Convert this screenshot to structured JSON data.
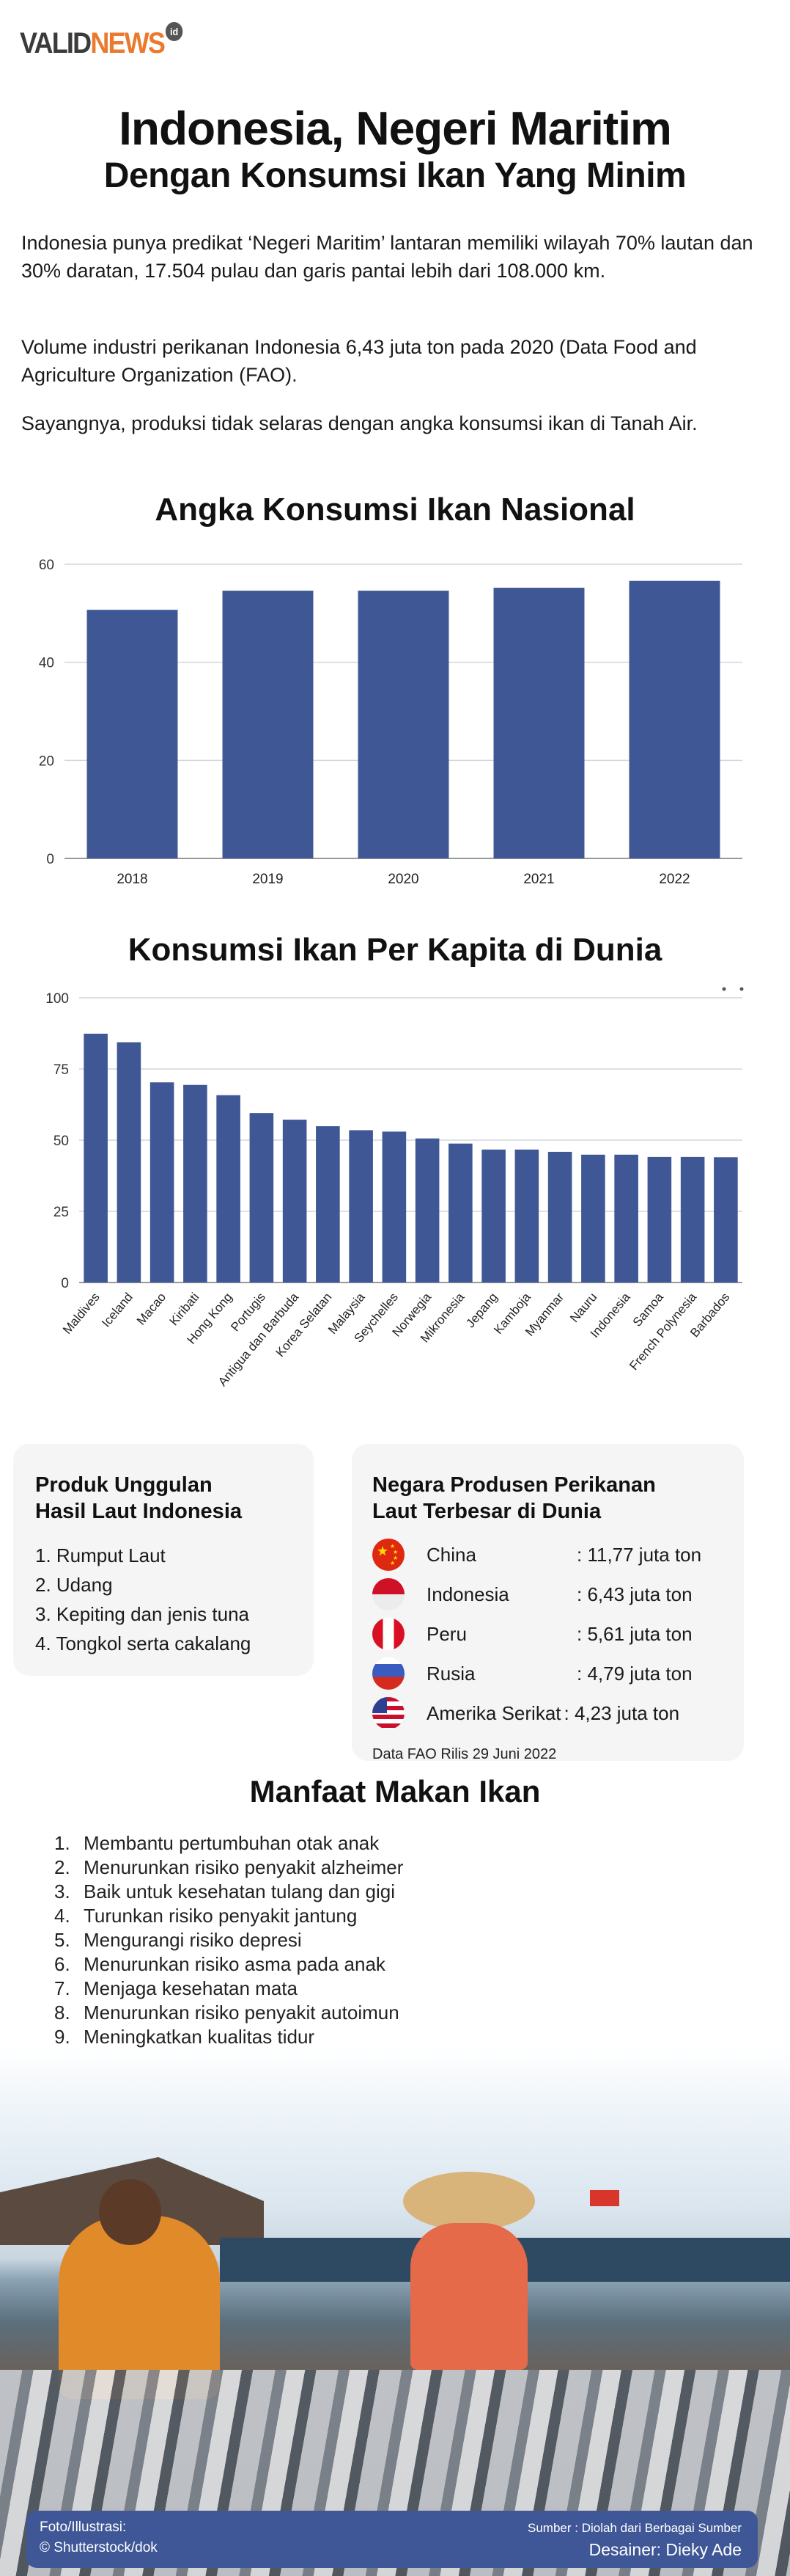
{
  "logo": {
    "part1": "VALID",
    "part2": "NEWS",
    "suffix": "id"
  },
  "title": {
    "line1": "Indonesia, Negeri Maritim",
    "line2": "Dengan Konsumsi Ikan Yang Minim"
  },
  "intro": [
    "Indonesia punya predikat ‘Negeri Maritim’ lantaran memiliki wilayah 70% lautan dan 30% daratan, 17.504 pulau dan garis pantai lebih dari 108.000 km.",
    "Volume industri perikanan Indonesia 6,43 juta ton pada 2020 (Data Food and Agriculture Organization (FAO).",
    "Sayangnya, produksi tidak selaras dengan angka konsumsi ikan di Tanah Air."
  ],
  "chart_data": [
    {
      "type": "bar",
      "title": "Angka Konsumsi Ikan Nasional",
      "categories": [
        "2018",
        "2019",
        "2020",
        "2021",
        "2022"
      ],
      "values": [
        50.7,
        54.6,
        54.6,
        55.2,
        56.6
      ],
      "ylim": [
        0,
        60
      ],
      "yticks": [
        0,
        20,
        40,
        60
      ],
      "grid": true,
      "bar_color": "#3f5795"
    },
    {
      "type": "bar",
      "title": "Konsumsi Ikan Per Kapita di Dunia",
      "categories": [
        "Maldives",
        "Iceland",
        "Macao",
        "Kiribati",
        "Hong Kong",
        "Portugis",
        "Antigua dan Barbuda",
        "Korea Selatan",
        "Malaysia",
        "Seychelles",
        "Norwegia",
        "Mikronesia",
        "Jepang",
        "Kamboja",
        "Myanmar",
        "Nauru",
        "Indonesia",
        "Samoa",
        "French Polynesia",
        "Barbados"
      ],
      "values": [
        87.4,
        84.4,
        70.3,
        69.4,
        65.8,
        59.5,
        57.2,
        54.9,
        53.5,
        53.0,
        50.6,
        48.8,
        46.7,
        46.7,
        45.9,
        44.9,
        44.9,
        44.1,
        44.1,
        44.0
      ],
      "ylim": [
        0,
        100
      ],
      "yticks": [
        0,
        25,
        50,
        75,
        100
      ],
      "grid": true,
      "bar_color": "#3f5795"
    }
  ],
  "products": {
    "title_line1": "Produk Unggulan",
    "title_line2": "Hasil Laut Indonesia",
    "items": [
      "1. Rumput Laut",
      "2. Udang",
      "3. Kepiting dan jenis tuna",
      "4. Tongkol serta cakalang"
    ]
  },
  "producers": {
    "title_line1": "Negara Produsen Perikanan",
    "title_line2": "Laut Terbesar di Dunia",
    "items": [
      {
        "country": "China",
        "value": ": 11,77 juta ton",
        "flag": "china-flag"
      },
      {
        "country": "Indonesia",
        "value": ": 6,43 juta ton",
        "flag": "indonesia-flag"
      },
      {
        "country": "Peru",
        "value": ": 5,61 juta ton",
        "flag": "peru-flag"
      },
      {
        "country": "Rusia",
        "value": ": 4,79 juta ton",
        "flag": "russia-flag"
      },
      {
        "country": "Amerika Serikat",
        "value": ": 4,23 juta ton",
        "flag": "usa-flag"
      }
    ],
    "note": "Data FAO Rilis 29 Juni 2022"
  },
  "benefits": {
    "title": "Manfaat Makan Ikan",
    "items": [
      {
        "num": "1.",
        "text": "Membantu pertumbuhan otak anak"
      },
      {
        "num": "2.",
        "text": "Menurunkan risiko penyakit alzheimer"
      },
      {
        "num": "3.",
        "text": "Baik untuk kesehatan tulang dan gigi"
      },
      {
        "num": "4.",
        "text": "Turunkan risiko penyakit jantung"
      },
      {
        "num": "5.",
        "text": "Mengurangi risiko depresi"
      },
      {
        "num": "6.",
        "text": "Menurunkan risiko asma pada anak"
      },
      {
        "num": "7.",
        "text": "Menjaga kesehatan mata"
      },
      {
        "num": "8.",
        "text": "Menurunkan risiko penyakit autoimun"
      },
      {
        "num": "9.",
        "text": "Meningkatkan kualitas tidur"
      }
    ]
  },
  "footer": {
    "photo_label": "Foto/Illustrasi:",
    "photo_credit": "© Shutterstock/dok",
    "source": "Sumber : Diolah dari Berbagai Sumber",
    "designer": "Desainer: Dieky Ade"
  }
}
